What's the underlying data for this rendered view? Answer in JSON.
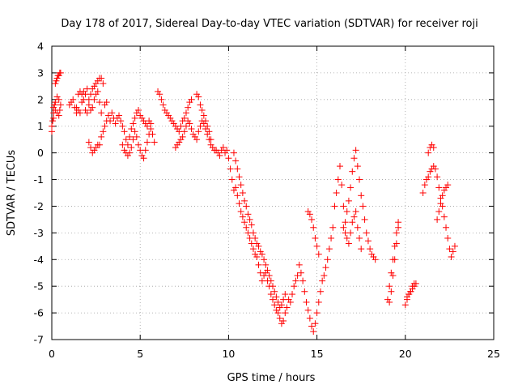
{
  "chart_data": {
    "type": "scatter",
    "title": "Day 178 of 2017, Sidereal Day-to-day VTEC variation (SDTVAR) for receiver roji",
    "xlabel": "GPS time / hours",
    "ylabel": "SDTVAR / TECUs",
    "xlim": [
      0,
      25
    ],
    "ylim": [
      -7,
      4
    ],
    "grid": true,
    "xticks": [
      0,
      5,
      10,
      15,
      20,
      25
    ],
    "yticks": [
      -7,
      -6,
      -5,
      -4,
      -3,
      -2,
      -1,
      0,
      1,
      2,
      3,
      4
    ],
    "marker": "+",
    "marker_color": "#ff0000",
    "series": [
      {
        "name": "SDTVAR",
        "x": [
          0.0,
          0.05,
          0.1,
          0.15,
          0.2,
          0.25,
          0.3,
          0.35,
          0.4,
          0.45,
          0.5,
          0.1,
          0.2,
          0.3,
          0.4,
          0.45,
          0.5,
          0.0,
          0.1,
          0.2,
          0.3,
          0.4,
          1.0,
          1.1,
          1.2,
          1.3,
          1.4,
          1.5,
          1.6,
          1.7,
          1.8,
          1.9,
          2.0,
          2.1,
          2.2,
          2.3,
          2.4,
          2.5,
          2.6,
          2.7,
          2.8,
          2.9,
          3.0,
          3.1,
          1.4,
          1.5,
          1.6,
          1.7,
          1.8,
          1.9,
          2.0,
          2.1,
          2.2,
          2.3,
          2.4,
          2.5,
          2.6,
          2.7,
          2.8,
          2.1,
          2.2,
          2.3,
          2.4,
          2.5,
          2.6,
          2.7,
          2.8,
          2.9,
          3.0,
          3.1,
          3.2,
          3.3,
          3.4,
          3.5,
          3.6,
          3.7,
          3.8,
          3.9,
          4.0,
          4.1,
          4.2,
          4.3,
          4.4,
          4.5,
          4.6,
          4.7,
          4.8,
          4.9,
          5.0,
          5.1,
          5.2,
          5.3,
          5.4,
          5.5,
          5.6,
          4.0,
          4.1,
          4.2,
          4.3,
          4.4,
          4.5,
          4.6,
          4.7,
          4.8,
          4.9,
          5.0,
          5.1,
          5.2,
          5.3,
          5.4,
          5.5,
          5.6,
          5.7,
          5.8,
          6.0,
          6.1,
          6.2,
          6.3,
          6.4,
          6.5,
          6.6,
          6.7,
          6.8,
          6.9,
          7.0,
          7.1,
          7.2,
          7.3,
          7.4,
          7.5,
          7.6,
          7.7,
          7.8,
          7.9,
          7.0,
          7.1,
          7.2,
          7.3,
          7.4,
          7.5,
          7.6,
          7.7,
          7.8,
          7.9,
          8.0,
          8.1,
          8.2,
          8.3,
          8.4,
          8.5,
          8.6,
          8.7,
          8.8,
          8.9,
          9.0,
          9.1,
          9.2,
          9.3,
          9.4,
          9.5,
          9.6,
          9.7,
          9.8,
          9.9,
          8.2,
          8.3,
          8.4,
          8.5,
          8.6,
          8.7,
          8.8,
          8.9,
          9.0,
          10.0,
          10.1,
          10.2,
          10.3,
          10.4,
          10.5,
          10.6,
          10.7,
          10.8,
          10.9,
          11.0,
          11.1,
          11.2,
          11.3,
          11.4,
          11.5,
          11.6,
          11.7,
          11.8,
          11.9,
          12.0,
          12.1,
          12.2,
          12.3,
          12.4,
          12.5,
          12.6,
          12.7,
          12.8,
          12.9,
          13.0,
          13.1,
          13.2,
          13.3,
          13.4,
          13.5,
          13.6,
          13.7,
          13.8,
          13.9,
          10.3,
          10.4,
          10.5,
          10.6,
          10.7,
          10.8,
          10.9,
          11.0,
          11.1,
          11.2,
          11.3,
          11.4,
          11.5,
          11.6,
          11.7,
          11.8,
          11.9,
          12.0,
          12.1,
          12.2,
          12.3,
          12.4,
          12.5,
          12.6,
          12.7,
          12.8,
          12.9,
          13.0,
          13.1,
          13.2,
          14.0,
          14.1,
          14.2,
          14.3,
          14.4,
          14.5,
          14.6,
          14.7,
          14.8,
          14.9,
          15.0,
          15.1,
          15.2,
          15.3,
          15.4,
          15.5,
          15.6,
          15.7,
          15.8,
          15.9,
          14.5,
          14.6,
          14.7,
          14.8,
          14.9,
          15.0,
          15.1,
          16.0,
          16.1,
          16.2,
          16.3,
          16.4,
          16.5,
          16.6,
          16.7,
          16.8,
          16.9,
          17.0,
          17.1,
          17.2,
          17.3,
          17.4,
          17.5,
          17.6,
          17.7,
          17.8,
          17.9,
          18.0,
          18.1,
          18.2,
          18.3,
          16.5,
          16.6,
          16.7,
          16.8,
          16.9,
          17.0,
          17.1,
          17.2,
          17.3,
          17.4,
          17.5,
          19.0,
          19.1,
          19.2,
          19.3,
          19.4,
          19.5,
          19.6,
          19.1,
          19.2,
          19.3,
          19.4,
          19.5,
          19.6,
          20.0,
          20.1,
          20.2,
          20.3,
          20.4,
          20.5,
          20.6,
          20.1,
          20.2,
          20.3,
          20.4,
          20.5,
          21.0,
          21.1,
          21.2,
          21.3,
          21.4,
          21.5,
          21.6,
          21.7,
          21.8,
          21.9,
          22.0,
          22.1,
          22.2,
          22.3,
          22.4,
          22.5,
          22.6,
          22.7,
          22.8,
          21.3,
          21.4,
          21.5,
          21.6,
          21.8,
          21.9,
          22.0,
          22.1,
          22.2,
          22.3,
          22.4
        ],
        "y": [
          0.8,
          1.2,
          1.5,
          1.8,
          2.6,
          2.7,
          2.8,
          2.9,
          2.9,
          3.0,
          3.0,
          1.7,
          1.9,
          2.1,
          2.0,
          1.6,
          1.8,
          1.0,
          1.3,
          1.6,
          1.5,
          1.4,
          1.8,
          1.9,
          2.0,
          1.7,
          1.5,
          2.2,
          2.3,
          2.2,
          2.0,
          1.6,
          1.5,
          2.0,
          2.2,
          2.4,
          2.5,
          2.6,
          2.7,
          2.8,
          2.8,
          2.6,
          1.8,
          1.9,
          1.7,
          1.6,
          1.5,
          1.9,
          2.3,
          2.2,
          2.4,
          1.8,
          1.6,
          1.7,
          2.0,
          2.2,
          2.3,
          1.9,
          1.5,
          0.4,
          0.2,
          0.0,
          0.1,
          0.2,
          0.3,
          0.3,
          0.6,
          0.8,
          1.0,
          1.2,
          1.4,
          1.2,
          1.5,
          1.3,
          1.1,
          1.3,
          1.4,
          1.2,
          1.0,
          0.8,
          0.5,
          0.3,
          0.6,
          0.9,
          1.1,
          1.3,
          1.5,
          1.6,
          1.4,
          1.3,
          1.2,
          1.1,
          1.0,
          1.2,
          1.1,
          0.3,
          0.1,
          0.0,
          -0.1,
          0.0,
          0.2,
          0.5,
          0.8,
          0.6,
          0.3,
          0.1,
          -0.1,
          -0.2,
          0.1,
          0.4,
          0.7,
          0.9,
          0.7,
          0.4,
          2.3,
          2.2,
          2.0,
          1.8,
          1.6,
          1.5,
          1.4,
          1.3,
          1.2,
          1.1,
          1.0,
          0.9,
          0.8,
          1.0,
          1.2,
          1.3,
          1.5,
          1.7,
          1.9,
          2.0,
          0.2,
          0.3,
          0.4,
          0.5,
          0.6,
          0.8,
          1.0,
          1.2,
          1.1,
          0.9,
          0.7,
          0.6,
          0.5,
          0.8,
          1.0,
          1.2,
          1.1,
          0.9,
          0.7,
          0.5,
          0.3,
          0.2,
          0.1,
          0.1,
          0.0,
          -0.1,
          0.1,
          0.2,
          0.0,
          0.1,
          2.2,
          2.1,
          1.8,
          1.6,
          1.4,
          1.2,
          1.0,
          0.8,
          0.5,
          -0.2,
          -0.6,
          -1.0,
          -1.4,
          -1.3,
          -1.6,
          -1.9,
          -2.2,
          -2.4,
          -2.6,
          -2.8,
          -3.0,
          -3.2,
          -3.4,
          -3.6,
          -3.8,
          -3.9,
          -4.2,
          -4.5,
          -4.8,
          -4.6,
          -4.5,
          -4.8,
          -5.0,
          -5.3,
          -5.5,
          -5.7,
          -5.9,
          -6.0,
          -6.2,
          -6.4,
          -6.3,
          -6.0,
          -5.8,
          -5.5,
          -5.6,
          -5.3,
          -5.0,
          -4.8,
          -4.6,
          0.0,
          -0.3,
          -0.6,
          -0.9,
          -1.2,
          -1.5,
          -1.8,
          -2.0,
          -2.3,
          -2.5,
          -2.7,
          -3.0,
          -3.2,
          -3.4,
          -3.5,
          -3.7,
          -3.8,
          -4.0,
          -4.2,
          -4.4,
          -4.6,
          -4.8,
          -5.0,
          -5.2,
          -5.4,
          -5.6,
          -5.8,
          -5.7,
          -5.5,
          -5.3,
          -4.2,
          -4.5,
          -4.8,
          -5.2,
          -5.6,
          -5.9,
          -6.2,
          -6.5,
          -6.7,
          -6.4,
          -6.0,
          -5.6,
          -5.2,
          -4.8,
          -4.6,
          -4.3,
          -4.0,
          -3.6,
          -3.2,
          -2.8,
          -2.2,
          -2.3,
          -2.5,
          -2.8,
          -3.2,
          -3.5,
          -3.8,
          -2.0,
          -1.5,
          -1.0,
          -0.5,
          -1.2,
          -2.0,
          -2.6,
          -2.2,
          -1.8,
          -1.3,
          -0.7,
          -0.2,
          0.1,
          -0.5,
          -1.0,
          -1.6,
          -2.0,
          -2.5,
          -3.0,
          -3.3,
          -3.6,
          -3.8,
          -3.9,
          -4.0,
          -2.8,
          -3.0,
          -3.2,
          -3.4,
          -3.0,
          -2.6,
          -2.4,
          -2.2,
          -2.8,
          -3.2,
          -3.6,
          -5.5,
          -5.0,
          -4.5,
          -4.0,
          -3.5,
          -3.0,
          -2.6,
          -5.6,
          -5.2,
          -4.6,
          -4.0,
          -3.4,
          -2.8,
          -5.7,
          -5.5,
          -5.3,
          -5.2,
          -5.1,
          -5.0,
          -4.9,
          -5.4,
          -5.3,
          -5.2,
          -5.0,
          -4.9,
          -1.5,
          -1.2,
          -1.0,
          -0.9,
          -0.7,
          -0.6,
          -0.5,
          -0.6,
          -0.9,
          -1.3,
          -1.7,
          -2.0,
          -2.4,
          -2.8,
          -3.2,
          -3.6,
          -3.9,
          -3.7,
          -3.5,
          0.0,
          0.2,
          0.3,
          0.2,
          -2.5,
          -2.2,
          -1.9,
          -1.6,
          -1.4,
          -1.3,
          -1.2
        ]
      }
    ]
  }
}
